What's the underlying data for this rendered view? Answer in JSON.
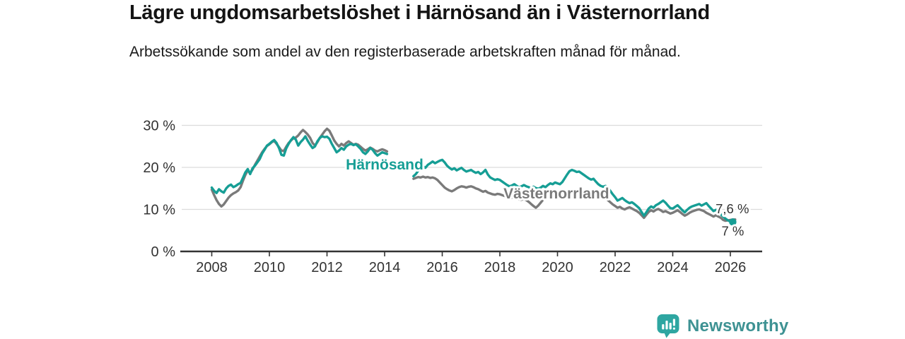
{
  "header": {
    "title": "Lägre ungdomsarbetslöshet i Härnösand än i Västernorrland",
    "subtitle": "Arbetssökande som andel av den registerbaserade arbetskraften månad för månad."
  },
  "footer": {
    "brand": "Newsworthy",
    "brand_color": "#3E9293",
    "icon": "bar-chart-speech-bubble-icon",
    "icon_color": "#2EA6A1"
  },
  "chart_data": {
    "type": "line",
    "unit": "%",
    "grid": "horizontal",
    "start_year": 2008,
    "x_range": [
      "2008-01",
      "2026-03"
    ],
    "data_gap": "no data drawn Mar 2014 – Dec 2014",
    "ylim": [
      0,
      32
    ],
    "y_ticks": [
      {
        "label": "0 %",
        "value": 0
      },
      {
        "label": "10 %",
        "value": 10
      },
      {
        "label": "20 %",
        "value": 20
      },
      {
        "label": "30 %",
        "value": 30
      }
    ],
    "x_ticks": [
      {
        "label": "2008",
        "year": 2008
      },
      {
        "label": "2010",
        "year": 2010
      },
      {
        "label": "2012",
        "year": 2012
      },
      {
        "label": "2014",
        "year": 2014
      },
      {
        "label": "2016",
        "year": 2016
      },
      {
        "label": "2018",
        "year": 2018
      },
      {
        "label": "2020",
        "year": 2020
      },
      {
        "label": "2022",
        "year": 2022
      },
      {
        "label": "2024",
        "year": 2024
      },
      {
        "label": "2026",
        "year": 2026
      }
    ],
    "series": [
      {
        "name": "Härnösand",
        "color": "#169E95",
        "end_label": "7 %",
        "end_value": 7.0,
        "label_pos": {
          "year": 2014.0,
          "pct": 20.7
        },
        "values_monthly": [
          15.2,
          14.4,
          13.9,
          14.8,
          14.3,
          14.0,
          15.0,
          15.6,
          15.9,
          15.3,
          15.6,
          16.0,
          16.3,
          17.5,
          18.8,
          19.6,
          18.4,
          19.8,
          20.4,
          21.2,
          22.0,
          23.3,
          24.2,
          25.2,
          25.6,
          26.1,
          26.5,
          25.8,
          24.6,
          23.0,
          22.8,
          24.5,
          25.6,
          26.5,
          27.2,
          26.6,
          25.2,
          26.0,
          26.6,
          27.4,
          26.3,
          25.4,
          24.6,
          25.0,
          26.2,
          27.0,
          27.4,
          27.2,
          27.3,
          26.8,
          25.6,
          24.6,
          23.6,
          24.0,
          24.6,
          24.2,
          25.0,
          25.4,
          25.6,
          25.3,
          25.5,
          25.0,
          24.4,
          23.6,
          23.2,
          23.8,
          24.6,
          24.2,
          23.4,
          22.8,
          23.2,
          23.6,
          23.4,
          23.2,
          null,
          null,
          null,
          null,
          null,
          null,
          null,
          null,
          null,
          null,
          17.9,
          18.4,
          19.2,
          19.8,
          20.3,
          19.9,
          20.6,
          21.0,
          21.4,
          21.0,
          21.3,
          21.6,
          21.8,
          21.2,
          20.4,
          19.9,
          19.5,
          19.8,
          19.3,
          19.6,
          19.9,
          19.4,
          19.0,
          19.2,
          19.4,
          19.0,
          18.7,
          18.9,
          18.4,
          18.8,
          19.4,
          18.3,
          17.6,
          17.3,
          17.0,
          17.2,
          17.0,
          16.6,
          16.2,
          15.8,
          15.5,
          15.7,
          16.0,
          15.6,
          15.3,
          15.5,
          15.8,
          15.5,
          15.3,
          15.0,
          15.4,
          15.1,
          14.9,
          15.2,
          15.6,
          15.3,
          15.8,
          16.2,
          16.0,
          16.4,
          16.2,
          16.0,
          16.5,
          17.4,
          18.3,
          19.1,
          19.4,
          19.2,
          18.9,
          19.0,
          18.6,
          18.2,
          17.8,
          17.4,
          17.1,
          17.3,
          16.6,
          16.0,
          15.6,
          15.4,
          15.6,
          15.2,
          14.4,
          13.6,
          12.9,
          12.1,
          12.4,
          12.7,
          12.2,
          11.8,
          11.5,
          11.7,
          11.3,
          10.8,
          10.3,
          9.4,
          8.5,
          9.3,
          10.2,
          10.7,
          10.4,
          11.0,
          11.3,
          11.7,
          12.1,
          11.6,
          10.9,
          10.3,
          10.2,
          10.6,
          11.0,
          10.4,
          9.8,
          9.3,
          9.9,
          10.4,
          10.7,
          10.9,
          11.1,
          11.3,
          10.9,
          11.2,
          11.5,
          10.8,
          10.2,
          9.6,
          9.9,
          9.3,
          8.8,
          8.3,
          7.8,
          7.4,
          7.1,
          7.0
        ]
      },
      {
        "name": "Västernorrland",
        "color": "#7A7A7A",
        "end_label": "7,6 %",
        "end_value": 7.6,
        "label_pos": {
          "year": 2019.96,
          "pct": 13.8
        },
        "values_monthly": [
          14.7,
          13.4,
          12.2,
          11.3,
          10.7,
          11.2,
          12.0,
          12.8,
          13.4,
          13.8,
          14.1,
          14.5,
          15.3,
          16.8,
          18.2,
          19.3,
          18.6,
          19.5,
          20.6,
          21.6,
          22.6,
          23.6,
          24.4,
          25.1,
          25.5,
          26.0,
          26.3,
          25.6,
          24.8,
          24.0,
          23.9,
          24.9,
          25.8,
          26.4,
          26.9,
          27.1,
          27.6,
          28.3,
          28.9,
          28.4,
          27.8,
          27.0,
          25.8,
          25.2,
          26.0,
          27.0,
          27.8,
          28.6,
          29.2,
          28.7,
          27.6,
          26.4,
          25.6,
          25.0,
          25.6,
          25.2,
          25.8,
          26.2,
          25.8,
          25.4,
          25.6,
          25.4,
          24.9,
          24.4,
          24.0,
          24.3,
          24.7,
          24.4,
          24.0,
          23.8,
          24.1,
          24.3,
          24.1,
          23.8,
          null,
          null,
          null,
          null,
          null,
          null,
          null,
          null,
          null,
          null,
          17.3,
          17.5,
          17.7,
          17.6,
          17.8,
          17.6,
          17.7,
          17.5,
          17.6,
          17.4,
          17.0,
          16.4,
          15.8,
          15.2,
          14.8,
          14.5,
          14.3,
          14.6,
          15.0,
          15.3,
          15.5,
          15.4,
          15.2,
          15.4,
          15.5,
          15.3,
          15.0,
          14.8,
          14.5,
          14.2,
          14.4,
          14.0,
          13.8,
          13.6,
          13.5,
          13.7,
          13.6,
          13.4,
          13.2,
          13.0,
          12.6,
          12.8,
          13.0,
          12.7,
          12.4,
          12.3,
          12.5,
          12.2,
          11.8,
          11.3,
          10.8,
          10.4,
          10.9,
          11.6,
          12.3,
          12.8,
          13.1,
          13.4,
          13.5,
          13.6,
          13.5,
          13.4,
          13.6,
          13.9,
          14.1,
          14.3,
          14.2,
          14.0,
          13.8,
          13.7,
          13.6,
          13.5,
          13.4,
          13.3,
          13.2,
          13.0,
          12.8,
          12.6,
          12.9,
          13.1,
          12.7,
          12.2,
          11.7,
          11.2,
          10.8,
          10.4,
          10.6,
          10.2,
          10.0,
          10.3,
          10.5,
          10.2,
          9.9,
          9.6,
          9.2,
          8.6,
          8.0,
          8.7,
          9.4,
          9.8,
          9.5,
          9.9,
          10.1,
          9.8,
          9.4,
          9.6,
          9.3,
          9.0,
          9.2,
          9.5,
          9.8,
          9.4,
          8.9,
          8.5,
          8.8,
          9.2,
          9.5,
          9.7,
          9.9,
          10.0,
          9.8,
          9.6,
          9.2,
          8.9,
          8.6,
          8.3,
          8.6,
          8.3,
          8.0,
          7.5,
          7.3,
          7.4,
          7.5,
          7.6,
          7.6
        ]
      }
    ]
  }
}
